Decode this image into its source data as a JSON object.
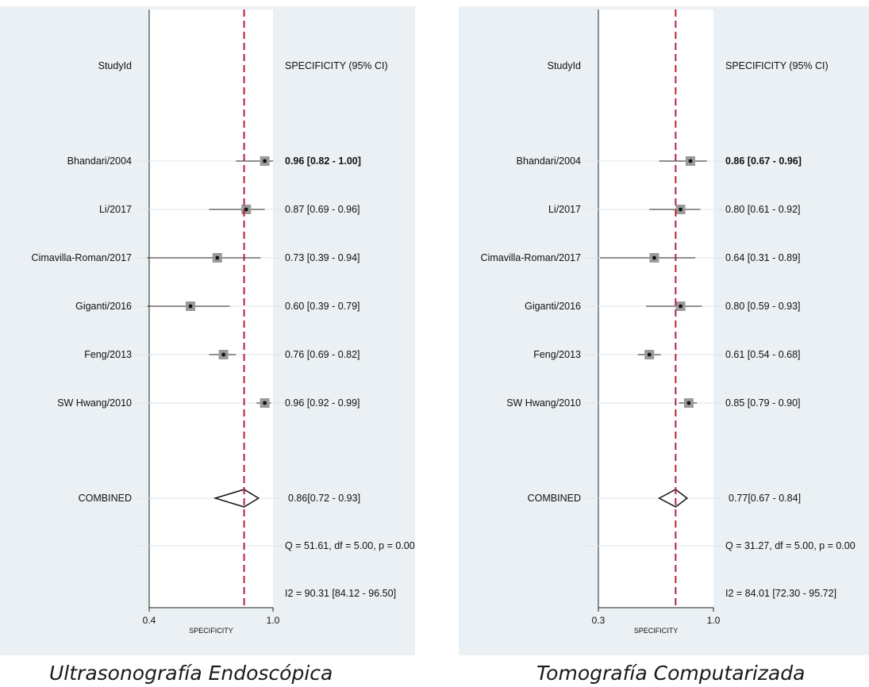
{
  "chart_data": [
    {
      "type": "forest",
      "column_headers": {
        "study": "StudyId",
        "estimate": "SPECIFICITY (95% CI)"
      },
      "xlabel": "SPECIFICITY",
      "x_ticks": [
        "0.4",
        "1.0"
      ],
      "xlim": [
        0.4,
        1.0
      ],
      "reference_line": 0.86,
      "studies": [
        {
          "name": "Bhandari/2004",
          "estimate": 0.96,
          "ci_low": 0.82,
          "ci_high": 1.0,
          "label": "0.96 [0.82 - 1.00]",
          "bold": true
        },
        {
          "name": "Li/2017",
          "estimate": 0.87,
          "ci_low": 0.69,
          "ci_high": 0.96,
          "label": "0.87 [0.69 - 0.96]"
        },
        {
          "name": "Cimavilla-Roman/2017",
          "estimate": 0.73,
          "ci_low": 0.39,
          "ci_high": 0.94,
          "label": "0.73 [0.39 - 0.94]"
        },
        {
          "name": "Giganti/2016",
          "estimate": 0.6,
          "ci_low": 0.39,
          "ci_high": 0.79,
          "label": "0.60 [0.39 - 0.79]"
        },
        {
          "name": "Feng/2013",
          "estimate": 0.76,
          "ci_low": 0.69,
          "ci_high": 0.82,
          "label": "0.76 [0.69 - 0.82]"
        },
        {
          "name": "SW Hwang/2010",
          "estimate": 0.96,
          "ci_low": 0.92,
          "ci_high": 0.99,
          "label": "0.96 [0.92 - 0.99]"
        }
      ],
      "combined": {
        "name": "COMBINED",
        "estimate": 0.86,
        "ci_low": 0.72,
        "ci_high": 0.93,
        "label": "0.86[0.72 - 0.93]"
      },
      "heterogeneity_q": "Q = 51.61, df = 5.00, p =  0.00",
      "heterogeneity_i2": "I2 = 90.31 [84.12 - 96.50]",
      "colors": {
        "reference_line": "#b2203a",
        "box_fill": "#9a9a9a",
        "background": "#eaf0f3"
      }
    },
    {
      "type": "forest",
      "column_headers": {
        "study": "StudyId",
        "estimate": "SPECIFICITY (95% CI)"
      },
      "xlabel": "SPECIFICITY",
      "x_ticks": [
        "0.3",
        "1.0"
      ],
      "xlim": [
        0.3,
        1.0
      ],
      "reference_line": 0.77,
      "studies": [
        {
          "name": "Bhandari/2004",
          "estimate": 0.86,
          "ci_low": 0.67,
          "ci_high": 0.96,
          "label": "0.86 [0.67 - 0.96]",
          "bold": true
        },
        {
          "name": "Li/2017",
          "estimate": 0.8,
          "ci_low": 0.61,
          "ci_high": 0.92,
          "label": "0.80 [0.61 - 0.92]"
        },
        {
          "name": "Cimavilla-Roman/2017",
          "estimate": 0.64,
          "ci_low": 0.31,
          "ci_high": 0.89,
          "label": "0.64 [0.31 - 0.89]"
        },
        {
          "name": "Giganti/2016",
          "estimate": 0.8,
          "ci_low": 0.59,
          "ci_high": 0.93,
          "label": "0.80 [0.59 - 0.93]"
        },
        {
          "name": "Feng/2013",
          "estimate": 0.61,
          "ci_low": 0.54,
          "ci_high": 0.68,
          "label": "0.61 [0.54 - 0.68]"
        },
        {
          "name": "SW Hwang/2010",
          "estimate": 0.85,
          "ci_low": 0.79,
          "ci_high": 0.9,
          "label": "0.85 [0.79 - 0.90]"
        }
      ],
      "combined": {
        "name": "COMBINED",
        "estimate": 0.77,
        "ci_low": 0.67,
        "ci_high": 0.84,
        "label": "0.77[0.67 - 0.84]"
      },
      "heterogeneity_q": "Q = 31.27, df = 5.00, p =  0.00",
      "heterogeneity_i2": "I2 = 84.01 [72.30 - 95.72]",
      "colors": {
        "reference_line": "#b2203a",
        "box_fill": "#9a9a9a",
        "background": "#eaf0f3"
      }
    }
  ],
  "captions": {
    "left": "Ultrasonografía Endoscópica",
    "right": "Tomografía Computarizada"
  }
}
